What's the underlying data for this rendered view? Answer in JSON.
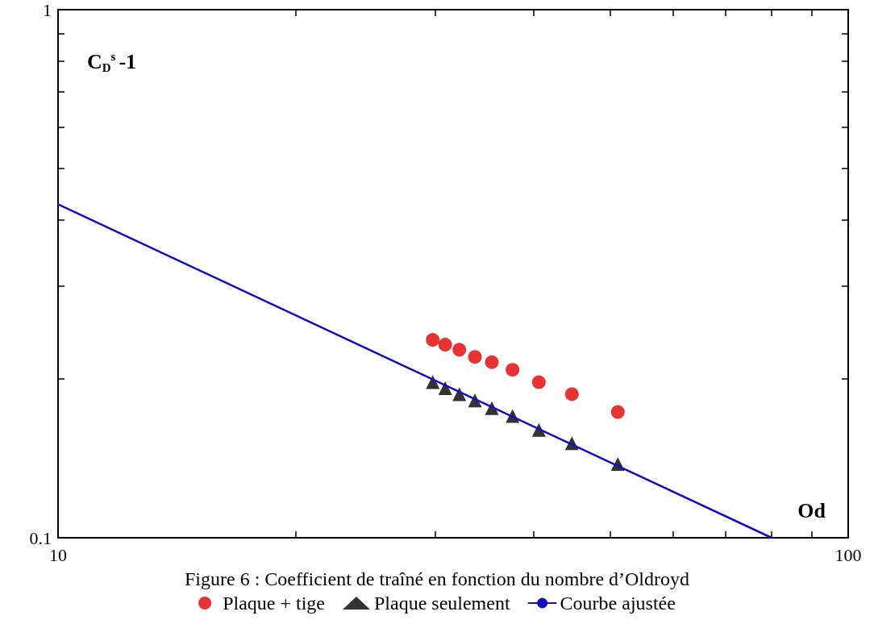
{
  "chart_data": {
    "type": "scatter",
    "title": "Figure 6 : Coefficient de traîné en fonction du nombre d’Oldroyd",
    "xlabel": "Od",
    "ylabel": "C$_{D}$$^{s}$-1",
    "log": "xy",
    "xlim": [
      10,
      100
    ],
    "ylim": [
      0.1,
      1
    ],
    "xticks": [
      10,
      {
        "value": 20,
        "label": null
      },
      {
        "value": 30,
        "label": null
      },
      {
        "value": 40,
        "label": null
      },
      {
        "value": 50,
        "label": null
      },
      {
        "value": 60,
        "label": null
      },
      {
        "value": 70,
        "label": null
      },
      {
        "value": 80,
        "label": null
      },
      {
        "value": 90,
        "label": null
      },
      100
    ],
    "yticks": [
      0.1,
      {
        "value": 0.2,
        "label": null
      },
      {
        "value": 0.3,
        "label": null
      },
      {
        "value": 0.4,
        "label": null
      },
      {
        "value": 0.5,
        "label": null
      },
      {
        "value": 0.6,
        "label": null
      },
      {
        "value": 0.7,
        "label": null
      },
      {
        "value": 0.8,
        "label": null
      },
      {
        "value": 0.9,
        "label": null
      },
      1
    ],
    "grid": false,
    "legend": "bottom",
    "series": [
      {
        "name": "Plaque + tige",
        "type": "scatter",
        "marker": "circle",
        "color": "#e00000",
        "x": [
          29.8,
          30.9,
          32.2,
          33.7,
          35.4,
          37.6,
          40.6,
          44.7,
          51.1
        ],
        "values": [
          0.237,
          0.232,
          0.227,
          0.22,
          0.215,
          0.208,
          0.197,
          0.187,
          0.173
        ]
      },
      {
        "name": "Plaque seulement",
        "type": "scatter",
        "marker": "triangle",
        "color": "#000000",
        "x": [
          29.8,
          30.9,
          32.2,
          33.7,
          35.4,
          37.6,
          40.6,
          44.7,
          51.1
        ],
        "values": [
          0.197,
          0.192,
          0.187,
          0.182,
          0.176,
          0.17,
          0.16,
          0.151,
          0.138
        ]
      },
      {
        "name": "Courbe ajustée",
        "type": "line",
        "marker": "none",
        "color": "#1010c0",
        "x": [
          10,
          80
        ],
        "values": [
          0.428,
          0.1
        ]
      }
    ]
  }
}
